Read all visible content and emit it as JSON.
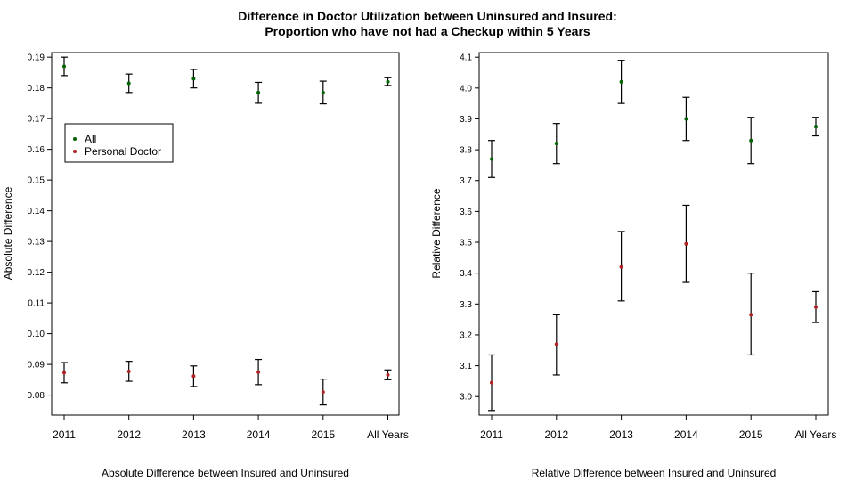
{
  "chart_data": [
    {
      "type": "scatter",
      "title": "Difference in Doctor Utilization between Uninsured and Insured:",
      "subtitle": "Proportion who have not had a Checkup within 5 Years",
      "xlabel": "Absolute Difference between Insured and Uninsured",
      "ylabel": "Absolute Difference",
      "categories": [
        "2011",
        "2012",
        "2013",
        "2014",
        "2015",
        "All Years"
      ],
      "yticks": [
        "0.08",
        "0.09",
        "0.10",
        "0.11",
        "0.12",
        "0.13",
        "0.14",
        "0.15",
        "0.16",
        "0.17",
        "0.18",
        "0.19"
      ],
      "ylim": [
        0.0735,
        0.1915
      ],
      "legend": {
        "position": "top-left",
        "entries": [
          "All",
          "Personal Doctor"
        ]
      },
      "series": [
        {
          "name": "All",
          "color": "#006400",
          "values": [
            0.187,
            0.1815,
            0.183,
            0.1785,
            0.1785,
            0.182
          ],
          "lower": [
            0.184,
            0.1785,
            0.18,
            0.175,
            0.1748,
            0.1808
          ],
          "upper": [
            0.19,
            0.1845,
            0.186,
            0.1818,
            0.1822,
            0.1833
          ]
        },
        {
          "name": "Personal Doctor",
          "color": "#b22222",
          "values": [
            0.0873,
            0.0877,
            0.0862,
            0.0875,
            0.081,
            0.0866
          ],
          "lower": [
            0.084,
            0.0845,
            0.0828,
            0.0834,
            0.0768,
            0.085
          ],
          "upper": [
            0.0906,
            0.091,
            0.0895,
            0.0916,
            0.0852,
            0.0882
          ]
        }
      ]
    },
    {
      "type": "scatter",
      "xlabel": "Relative Difference between Insured and Uninsured",
      "ylabel": "Relative Difference",
      "categories": [
        "2011",
        "2012",
        "2013",
        "2014",
        "2015",
        "All Years"
      ],
      "yticks": [
        "3.0",
        "3.1",
        "3.2",
        "3.3",
        "3.4",
        "3.5",
        "3.6",
        "3.7",
        "3.8",
        "3.9",
        "4.0",
        "4.1"
      ],
      "ylim": [
        2.94,
        4.115
      ],
      "series": [
        {
          "name": "All",
          "color": "#006400",
          "values": [
            3.77,
            3.82,
            4.02,
            3.9,
            3.83,
            3.875
          ],
          "lower": [
            3.71,
            3.755,
            3.95,
            3.83,
            3.755,
            3.845
          ],
          "upper": [
            3.83,
            3.885,
            4.09,
            3.97,
            3.905,
            3.905
          ]
        },
        {
          "name": "Personal Doctor",
          "color": "#b22222",
          "values": [
            3.045,
            3.17,
            3.42,
            3.495,
            3.265,
            3.29
          ],
          "lower": [
            2.955,
            3.07,
            3.31,
            3.37,
            3.135,
            3.24
          ],
          "upper": [
            3.135,
            3.265,
            3.535,
            3.62,
            3.4,
            3.34
          ]
        }
      ]
    }
  ]
}
